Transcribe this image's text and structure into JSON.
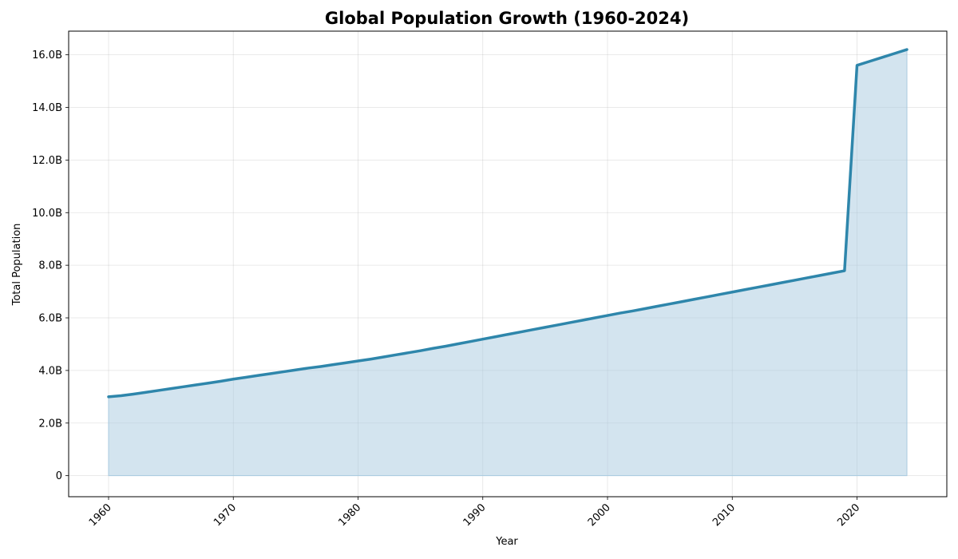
{
  "chart_data": {
    "type": "area",
    "title": "Global Population Growth (1960-2024)",
    "xlabel": "Year",
    "ylabel": "Total Population",
    "x_ticks": [
      1960,
      1970,
      1980,
      1990,
      2000,
      2010,
      2020
    ],
    "y_ticks": [
      0,
      2000000000,
      4000000000,
      6000000000,
      8000000000,
      10000000000,
      12000000000,
      14000000000,
      16000000000
    ],
    "y_tick_labels": [
      "0",
      "2.0B",
      "4.0B",
      "6.0B",
      "8.0B",
      "10.0B",
      "12.0B",
      "14.0B",
      "16.0B"
    ],
    "xlim": [
      1956.8,
      2027.2
    ],
    "ylim": [
      -800000000,
      16900000000
    ],
    "grid": true,
    "colors": {
      "line": "#2e86ab",
      "fill": "#a8cadf"
    },
    "series": [
      {
        "x": [
          1960,
          1961,
          1962,
          1963,
          1964,
          1965,
          1966,
          1967,
          1968,
          1969,
          1970,
          1971,
          1972,
          1973,
          1974,
          1975,
          1976,
          1977,
          1978,
          1979,
          1980,
          1981,
          1982,
          1983,
          1984,
          1985,
          1986,
          1987,
          1988,
          1989,
          1990,
          1991,
          1992,
          1993,
          1994,
          1995,
          1996,
          1997,
          1998,
          1999,
          2000,
          2001,
          2002,
          2003,
          2004,
          2005,
          2006,
          2007,
          2008,
          2009,
          2010,
          2011,
          2012,
          2013,
          2014,
          2015,
          2016,
          2017,
          2018,
          2019,
          2020,
          2021,
          2022,
          2023,
          2024
        ],
        "values": [
          3000000000,
          3040000000,
          3100000000,
          3170000000,
          3240000000,
          3310000000,
          3380000000,
          3450000000,
          3520000000,
          3590000000,
          3670000000,
          3740000000,
          3810000000,
          3880000000,
          3950000000,
          4020000000,
          4090000000,
          4150000000,
          4220000000,
          4290000000,
          4360000000,
          4430000000,
          4510000000,
          4590000000,
          4670000000,
          4750000000,
          4840000000,
          4920000000,
          5010000000,
          5100000000,
          5190000000,
          5280000000,
          5370000000,
          5460000000,
          5550000000,
          5640000000,
          5730000000,
          5820000000,
          5910000000,
          6000000000,
          6090000000,
          6180000000,
          6260000000,
          6350000000,
          6440000000,
          6530000000,
          6620000000,
          6710000000,
          6800000000,
          6890000000,
          6980000000,
          7070000000,
          7160000000,
          7250000000,
          7340000000,
          7430000000,
          7520000000,
          7610000000,
          7700000000,
          7790000000,
          15600000000,
          15750000000,
          15900000000,
          16050000000,
          16200000000
        ]
      }
    ]
  }
}
